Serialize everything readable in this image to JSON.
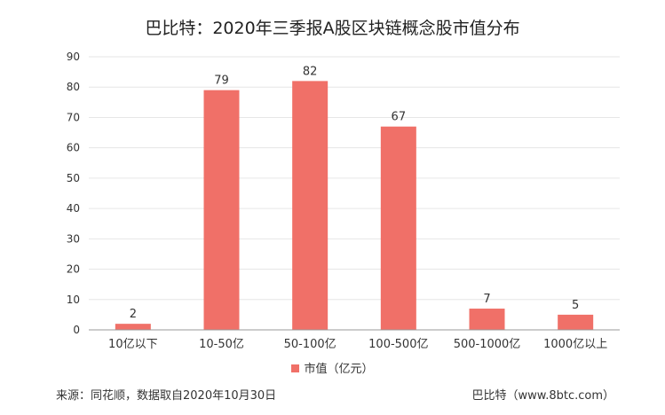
{
  "chart_data": {
    "type": "bar",
    "title": "巴比特：2020年三季报A股区块链概念股市值分布",
    "categories": [
      "10亿以下",
      "10-50亿",
      "50-100亿",
      "100-500亿",
      "500-1000亿",
      "1000亿以上"
    ],
    "series": [
      {
        "name": "市值（亿元）",
        "values": [
          2,
          79,
          82,
          67,
          7,
          5
        ]
      }
    ],
    "ylim": [
      0,
      90
    ],
    "yticks": [
      0,
      10,
      20,
      30,
      40,
      50,
      60,
      70,
      80,
      90
    ],
    "grid": true,
    "legend_position": "bottom",
    "bar_color": "#f07068"
  },
  "footer": {
    "source": "来源：同花顺，数据取自2020年10月30日",
    "site": "巴比特（www.8btc.com）"
  }
}
